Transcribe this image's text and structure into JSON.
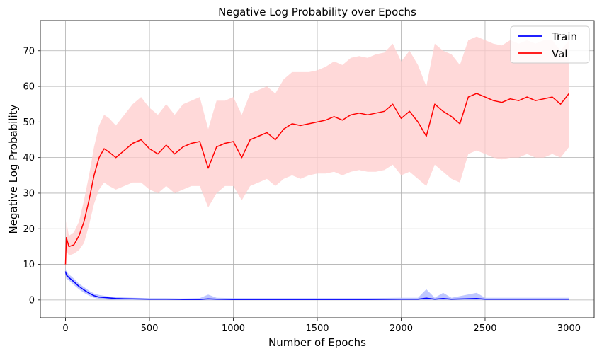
{
  "chart_data": {
    "type": "line",
    "title": "Negative Log Probability over Epochs",
    "xlabel": "Number of Epochs",
    "ylabel": "Negative Log Probability",
    "xlim": [
      -150,
      3150
    ],
    "ylim": [
      -5,
      78.5
    ],
    "xticks": [
      0,
      500,
      1000,
      1500,
      2000,
      2500,
      3000
    ],
    "yticks": [
      0,
      10,
      20,
      30,
      40,
      50,
      60,
      70
    ],
    "xtick_labels": [
      "0",
      "500",
      "1000",
      "1500",
      "2000",
      "2500",
      "3000"
    ],
    "ytick_labels": [
      "0",
      "10",
      "20",
      "30",
      "40",
      "50",
      "60",
      "70"
    ],
    "grid": true,
    "legend_position": "top-right",
    "series": [
      {
        "name": "Train",
        "color": "#0000ff",
        "band_color": "#aab4ff",
        "x": [
          0,
          5,
          20,
          50,
          80,
          110,
          140,
          170,
          200,
          250,
          300,
          350,
          400,
          500,
          600,
          700,
          800,
          850,
          900,
          1000,
          1200,
          1500,
          1800,
          2000,
          2100,
          2150,
          2200,
          2250,
          2300,
          2450,
          2500,
          2700,
          3000
        ],
        "mean": [
          8.0,
          7.0,
          6.3,
          5.1,
          3.8,
          2.8,
          1.9,
          1.2,
          0.8,
          0.6,
          0.4,
          0.35,
          0.3,
          0.2,
          0.2,
          0.15,
          0.15,
          0.3,
          0.2,
          0.15,
          0.15,
          0.15,
          0.15,
          0.2,
          0.2,
          0.5,
          0.2,
          0.4,
          0.2,
          0.4,
          0.2,
          0.2,
          0.2
        ],
        "lower": [
          7.0,
          6.0,
          5.5,
          4.2,
          3.0,
          2.0,
          1.2,
          0.6,
          0.3,
          0.1,
          0.0,
          0.0,
          0.0,
          0.0,
          0.0,
          0.0,
          0.0,
          0.0,
          0.0,
          0.0,
          0.0,
          0.0,
          0.0,
          0.0,
          0.0,
          0.0,
          0.0,
          0.0,
          0.0,
          0.0,
          0.0,
          0.0,
          0.0
        ],
        "upper": [
          9.0,
          8.0,
          7.2,
          6.0,
          4.6,
          3.6,
          2.6,
          1.8,
          1.4,
          1.0,
          0.8,
          0.7,
          0.6,
          0.5,
          0.5,
          0.4,
          0.5,
          1.5,
          0.6,
          0.5,
          0.5,
          0.5,
          0.5,
          0.6,
          0.6,
          3.0,
          0.6,
          2.0,
          0.6,
          2.0,
          0.6,
          0.6,
          0.6
        ]
      },
      {
        "name": "Val",
        "color": "#ff0000",
        "band_color": "#ffcccc",
        "x": [
          0,
          5,
          20,
          50,
          80,
          110,
          140,
          170,
          200,
          230,
          260,
          300,
          350,
          400,
          450,
          500,
          550,
          600,
          650,
          700,
          750,
          800,
          850,
          900,
          950,
          1000,
          1050,
          1100,
          1150,
          1200,
          1250,
          1300,
          1350,
          1400,
          1450,
          1500,
          1550,
          1600,
          1650,
          1700,
          1750,
          1800,
          1850,
          1900,
          1950,
          2000,
          2050,
          2100,
          2150,
          2200,
          2250,
          2300,
          2350,
          2400,
          2450,
          2500,
          2550,
          2600,
          2650,
          2700,
          2750,
          2800,
          2850,
          2900,
          2950,
          3000
        ],
        "mean": [
          10.0,
          17.5,
          15.0,
          15.5,
          18.0,
          22.0,
          28.0,
          35.0,
          40.0,
          42.5,
          41.5,
          40.0,
          42.0,
          44.0,
          45.0,
          42.5,
          41.0,
          43.5,
          41.0,
          43.0,
          44.0,
          44.5,
          37.0,
          43.0,
          44.0,
          44.5,
          40.0,
          45.0,
          46.0,
          47.0,
          45.0,
          48.0,
          49.5,
          49.0,
          49.5,
          50.0,
          50.5,
          51.5,
          50.5,
          52.0,
          52.5,
          52.0,
          52.5,
          53.0,
          55.0,
          51.0,
          53.0,
          50.0,
          46.0,
          55.0,
          53.0,
          51.5,
          49.5,
          57.0,
          58.0,
          57.0,
          56.0,
          55.5,
          56.5,
          56.0,
          57.0,
          56.0,
          56.5,
          57.0,
          55.0,
          58.0
        ],
        "lower": [
          8.0,
          14.0,
          12.5,
          13.0,
          14.0,
          16.0,
          21.0,
          27.0,
          31.0,
          33.0,
          32.0,
          31.0,
          32.0,
          33.0,
          33.0,
          31.0,
          30.0,
          32.0,
          30.0,
          31.0,
          32.0,
          32.0,
          26.0,
          30.0,
          32.0,
          32.0,
          28.0,
          32.0,
          33.0,
          34.0,
          32.0,
          34.0,
          35.0,
          34.0,
          35.0,
          35.5,
          35.5,
          36.0,
          35.0,
          36.0,
          36.5,
          36.0,
          36.0,
          36.5,
          38.0,
          35.0,
          36.0,
          34.0,
          32.0,
          38.0,
          36.0,
          34.0,
          33.0,
          41.0,
          42.0,
          41.0,
          40.0,
          39.5,
          40.0,
          40.0,
          41.0,
          40.0,
          40.0,
          41.0,
          40.0,
          43.0
        ],
        "upper": [
          12.0,
          22.0,
          18.0,
          19.0,
          22.0,
          28.0,
          35.0,
          43.0,
          49.0,
          52.0,
          51.0,
          49.0,
          52.0,
          55.0,
          57.0,
          54.0,
          52.0,
          55.0,
          52.0,
          55.0,
          56.0,
          57.0,
          48.0,
          56.0,
          56.0,
          57.0,
          52.0,
          58.0,
          59.0,
          60.0,
          58.0,
          62.0,
          64.0,
          64.0,
          64.0,
          64.5,
          65.5,
          67.0,
          66.0,
          68.0,
          68.5,
          68.0,
          69.0,
          69.5,
          72.0,
          67.0,
          70.0,
          66.0,
          60.0,
          72.0,
          70.0,
          69.0,
          66.0,
          73.0,
          74.0,
          73.0,
          72.0,
          71.5,
          73.0,
          72.0,
          73.0,
          72.0,
          73.0,
          73.0,
          70.0,
          73.0
        ]
      }
    ]
  }
}
